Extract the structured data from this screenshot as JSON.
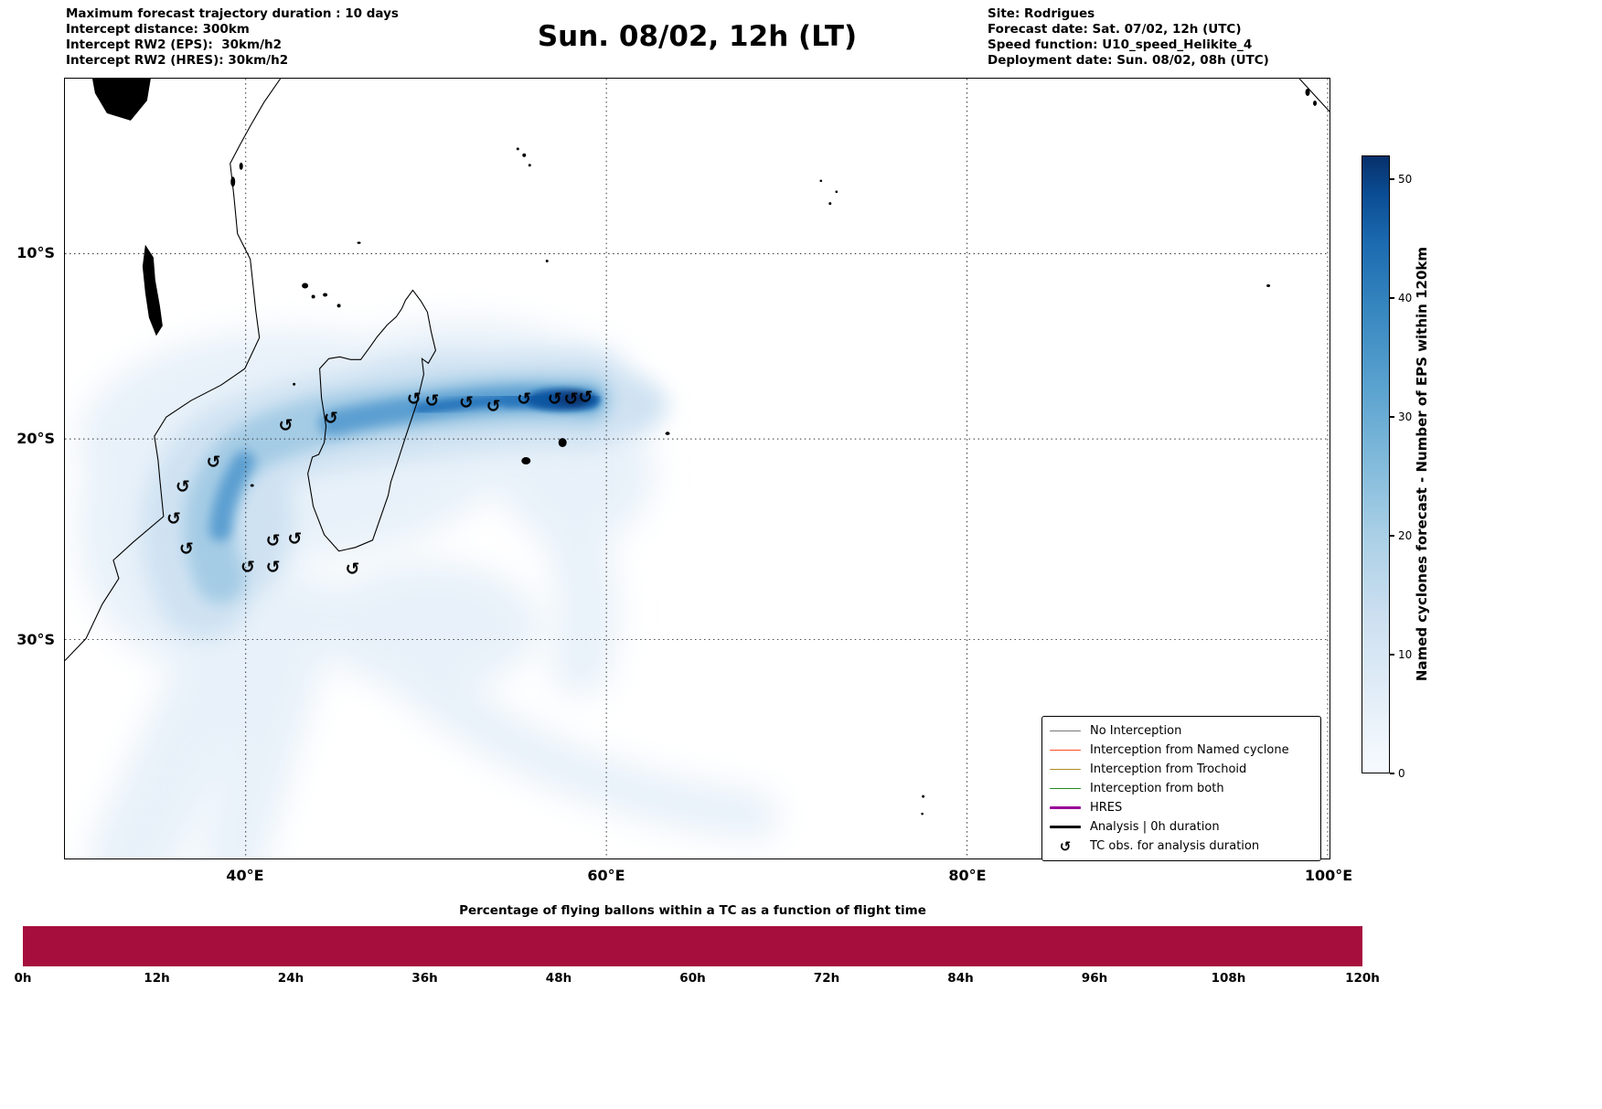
{
  "header": {
    "left_lines": [
      "Maximum forecast trajectory duration : 10 days",
      "Intercept distance: 300km",
      "Intercept RW2 (EPS):  30km/h2",
      "Intercept RW2 (HRES): 30km/h2"
    ],
    "title": "Sun. 08/02, 12h (LT)",
    "right_lines": [
      "Site: Rodrigues",
      "Forecast date: Sat. 07/02, 12h (UTC)",
      "Speed function: U10_speed_Helikite_4",
      "Deployment date: Sun. 08/02, 08h (UTC)"
    ]
  },
  "map": {
    "x_ticks": [
      {
        "label": "40°E",
        "lon": 40
      },
      {
        "label": "60°E",
        "lon": 60
      },
      {
        "label": "80°E",
        "lon": 80
      },
      {
        "label": "100°E",
        "lon": 100
      }
    ],
    "y_ticks": [
      {
        "label": "10°S",
        "lat": 10
      },
      {
        "label": "20°S",
        "lat": 20
      },
      {
        "label": "30°S",
        "lat": 30
      }
    ],
    "tc_symbol": "↺",
    "legend": [
      {
        "label": "No Interception",
        "color": "#777777",
        "thick": false
      },
      {
        "label": "Interception from Named cyclone",
        "color": "#ff4a1f",
        "thick": false
      },
      {
        "label": "Interception from Trochoid",
        "color": "#ad8b21",
        "thick": false
      },
      {
        "label": "Interception from both",
        "color": "#228b22",
        "thick": false
      },
      {
        "label": "HRES",
        "color": "#990099",
        "thick": true
      },
      {
        "label": "Analysis | 0h duration",
        "color": "#000000",
        "thick": true
      },
      {
        "label": "TC obs. for analysis duration",
        "symbol": "↺"
      }
    ]
  },
  "colorbar": {
    "label": "Named cyclones forecast - Number of EPS within 120km",
    "ticks": [
      0,
      10,
      20,
      30,
      40,
      50
    ],
    "vmax": 52,
    "min_color": "#f7fbff",
    "max_color": "#08306b"
  },
  "bottom_chart": {
    "title": "Percentage of flying ballons within a TC as a function of flight time",
    "x_ticks": [
      "0h",
      "12h",
      "24h",
      "36h",
      "48h",
      "60h",
      "72h",
      "84h",
      "96h",
      "108h",
      "120h"
    ],
    "bar_color": "#a60e3e"
  },
  "chart_data": [
    {
      "type": "heatmap",
      "title": "Sun. 08/02, 12h (LT)",
      "description": "Ensemble density of named-cyclone positions (number of EPS members within 120 km) over the SW Indian Ocean; dense track runs E-W near 18°S from ~59°E toward Madagascar and the Mozambique coast, with light-probability plumes spreading SW and SE",
      "x_range_deg_east": [
        30,
        100
      ],
      "y_range_deg_south": [
        0.5,
        41
      ],
      "colorbar_label": "Named cyclones forecast - Number of EPS within 120km",
      "colorbar_range": [
        0,
        52
      ],
      "density_peak_lon_lat_s": [
        58.3,
        17.9
      ],
      "density_peak_value": 52,
      "tc_obs_lon_lat_s": [
        [
          49.3,
          17.9
        ],
        [
          50.3,
          18.0
        ],
        [
          52.2,
          18.1
        ],
        [
          53.7,
          18.3
        ],
        [
          55.4,
          17.9
        ],
        [
          57.1,
          17.9
        ],
        [
          58.0,
          17.9
        ],
        [
          58.8,
          17.8
        ],
        [
          44.7,
          18.9
        ],
        [
          42.2,
          19.3
        ],
        [
          38.2,
          21.2
        ],
        [
          36.5,
          22.4
        ],
        [
          36.0,
          24.0
        ],
        [
          36.7,
          25.5
        ],
        [
          41.5,
          25.1
        ],
        [
          42.7,
          25.0
        ],
        [
          40.1,
          26.4
        ],
        [
          41.5,
          26.4
        ],
        [
          45.9,
          26.5
        ]
      ],
      "legend_position": "lower right",
      "grid": "dotted"
    },
    {
      "type": "bar",
      "title": "Percentage of flying ballons within a TC as a function of flight time",
      "x": [
        "0h",
        "12h",
        "24h",
        "36h",
        "48h",
        "60h",
        "72h",
        "84h",
        "96h",
        "108h",
        "120h"
      ],
      "values": [
        100,
        100,
        100,
        100,
        100,
        100,
        100,
        100,
        100,
        100,
        100
      ],
      "ylim": [
        0,
        100
      ],
      "bar_color": "#a60e3e"
    }
  ]
}
